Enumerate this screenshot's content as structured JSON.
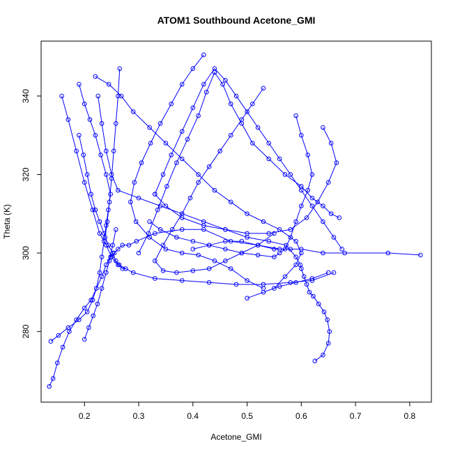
{
  "chart_data": {
    "type": "line",
    "title": "ATOM1 Southbound Acetone_GMI",
    "xlabel": "Acetone_GMI",
    "ylabel": "Theta (K)",
    "xlim": [
      0.12,
      0.84
    ],
    "ylim": [
      262,
      354
    ],
    "xticks": [
      "0.2",
      "0.3",
      "0.4",
      "0.5",
      "0.6",
      "0.7",
      "0.8"
    ],
    "yticks": [
      "280",
      "300",
      "320",
      "340"
    ],
    "grid": false,
    "legend": "none",
    "marker": "open-circle",
    "color": "#0000ff",
    "series": [
      {
        "x": [
          0.135,
          0.142,
          0.15,
          0.16,
          0.172,
          0.185,
          0.2,
          0.212,
          0.222,
          0.232,
          0.24,
          0.248,
          0.255,
          0.262,
          0.27,
          0.282,
          0.296,
          0.33,
          0.38,
          0.42,
          0.47,
          0.52,
          0.56,
          0.6,
          0.64,
          0.68,
          0.76,
          0.82
        ],
        "y": [
          266,
          268,
          272,
          276,
          280,
          283,
          286,
          288,
          291,
          294,
          297,
          299,
          300,
          301,
          302,
          302,
          303,
          305,
          306,
          306,
          303,
          302,
          301,
          301,
          300,
          300,
          300,
          299.5
        ]
      },
      {
        "x": [
          0.625,
          0.64,
          0.65,
          0.652,
          0.648,
          0.642,
          0.632,
          0.622,
          0.615,
          0.61,
          0.605,
          0.6,
          0.598,
          0.59,
          0.572,
          0.54,
          0.5,
          0.46,
          0.42,
          0.38,
          0.34,
          0.3,
          0.262,
          0.25,
          0.24,
          0.232,
          0.225
        ],
        "y": [
          272.5,
          274,
          277,
          280,
          283,
          285,
          287,
          289,
          290,
          292,
          294,
          296,
          297,
          299,
          302,
          303,
          304,
          306,
          308,
          310,
          312,
          314,
          316,
          320,
          326,
          333,
          340
        ]
      },
      {
        "x": [
          0.138,
          0.152,
          0.17,
          0.19,
          0.205,
          0.215,
          0.222,
          0.228,
          0.232,
          0.236,
          0.24,
          0.244,
          0.248,
          0.24,
          0.23,
          0.22,
          0.21,
          0.2,
          0.19
        ],
        "y": [
          277.5,
          279,
          281,
          283,
          285,
          288,
          291,
          295,
          299,
          303,
          307,
          311,
          315,
          320,
          325,
          330,
          334,
          338,
          343
        ]
      },
      {
        "x": [
          0.158,
          0.17,
          0.185,
          0.2,
          0.215,
          0.228,
          0.24,
          0.25,
          0.262,
          0.29,
          0.33,
          0.38,
          0.43,
          0.48,
          0.53,
          0.58,
          0.62,
          0.66
        ],
        "y": [
          340,
          334,
          326,
          318,
          311,
          305,
          302,
          299,
          297,
          295,
          293.5,
          293,
          292.5,
          292,
          292,
          292.5,
          293,
          295
        ]
      },
      {
        "x": [
          0.22,
          0.245,
          0.268,
          0.29,
          0.32,
          0.35,
          0.38,
          0.41,
          0.44,
          0.47,
          0.5,
          0.53,
          0.56,
          0.59,
          0.6,
          0.59,
          0.57,
          0.55
        ],
        "y": [
          345,
          343,
          340,
          336,
          332,
          328,
          324,
          320,
          316,
          313,
          310,
          308,
          306,
          303,
          300,
          297,
          294,
          291
        ]
      },
      {
        "x": [
          0.3,
          0.318,
          0.335,
          0.352,
          0.37,
          0.39,
          0.41,
          0.425,
          0.44,
          0.455,
          0.47,
          0.49,
          0.51,
          0.54,
          0.57,
          0.6,
          0.62,
          0.64,
          0.655,
          0.67
        ],
        "y": [
          300,
          305,
          311,
          317,
          323,
          329,
          335,
          341,
          346,
          343,
          338,
          333,
          328,
          324,
          320,
          317,
          314,
          312,
          310,
          309
        ]
      },
      {
        "x": [
          0.33,
          0.345,
          0.36,
          0.38,
          0.4,
          0.42,
          0.44,
          0.46,
          0.48,
          0.5,
          0.52,
          0.54,
          0.56,
          0.58,
          0.6,
          0.62,
          0.64,
          0.66,
          0.675
        ],
        "y": [
          315,
          320,
          325,
          331,
          337,
          343,
          347,
          344,
          340,
          336,
          332,
          328,
          324,
          320,
          316,
          312,
          308,
          304,
          301
        ]
      },
      {
        "x": [
          0.42,
          0.4,
          0.38,
          0.36,
          0.34,
          0.322,
          0.305,
          0.292,
          0.285,
          0.295,
          0.32,
          0.35,
          0.38,
          0.41,
          0.44,
          0.47,
          0.5,
          0.53
        ],
        "y": [
          350.5,
          347,
          343,
          338,
          333,
          328,
          323,
          318,
          313,
          308,
          304,
          301,
          300,
          299.5,
          298,
          296,
          293,
          291
        ]
      },
      {
        "x": [
          0.53,
          0.51,
          0.49,
          0.47,
          0.45,
          0.43,
          0.41,
          0.395,
          0.38,
          0.362,
          0.345,
          0.33,
          0.345,
          0.37,
          0.4,
          0.43,
          0.46,
          0.49,
          0.52,
          0.55
        ],
        "y": [
          342,
          338,
          334,
          330,
          326,
          322,
          318,
          314,
          310,
          306,
          302,
          298,
          295.5,
          295,
          295.5,
          296,
          298,
          300,
          302,
          305
        ]
      },
      {
        "x": [
          0.59,
          0.6,
          0.612,
          0.62,
          0.612,
          0.6,
          0.59,
          0.58,
          0.57,
          0.56,
          0.55,
          0.52,
          0.49,
          0.46,
          0.43,
          0.4,
          0.37,
          0.34,
          0.32
        ],
        "y": [
          335,
          330,
          325,
          320,
          316,
          312,
          308,
          304,
          301,
          300,
          299,
          299.5,
          300,
          301,
          302,
          303,
          304,
          306,
          308
        ]
      },
      {
        "x": [
          0.64,
          0.655,
          0.665,
          0.65,
          0.63,
          0.61,
          0.58,
          0.54,
          0.5,
          0.46,
          0.42,
          0.38,
          0.35,
          0.33
        ],
        "y": [
          332,
          328,
          323,
          318,
          313,
          309,
          306,
          305,
          305,
          306,
          307,
          309,
          312,
          315
        ]
      },
      {
        "x": [
          0.19,
          0.198,
          0.205,
          0.212,
          0.22,
          0.228,
          0.236,
          0.244,
          0.252,
          0.258,
          0.264,
          0.27,
          0.276
        ],
        "y": [
          330,
          325,
          320,
          315,
          311,
          308,
          305,
          302,
          300,
          298,
          297,
          296,
          296
        ]
      },
      {
        "x": [
          0.2,
          0.208,
          0.216,
          0.224,
          0.232,
          0.24,
          0.246,
          0.252,
          0.258
        ],
        "y": [
          278,
          281,
          284,
          287,
          291,
          295,
          298,
          302,
          306
        ]
      },
      {
        "x": [
          0.265,
          0.262,
          0.258,
          0.254,
          0.25,
          0.246,
          0.242,
          0.238
        ],
        "y": [
          347,
          340,
          333,
          326,
          319,
          313,
          308,
          304
        ]
      },
      {
        "x": [
          0.5,
          0.53,
          0.56,
          0.59,
          0.62,
          0.65
        ],
        "y": [
          288.5,
          290,
          291.5,
          292.5,
          293.5,
          295
        ]
      },
      {
        "x": [
          0.4,
          0.43,
          0.46,
          0.49,
          0.52,
          0.55,
          0.58
        ],
        "y": [
          301,
          302,
          303,
          303,
          302,
          301,
          301
        ]
      }
    ]
  }
}
